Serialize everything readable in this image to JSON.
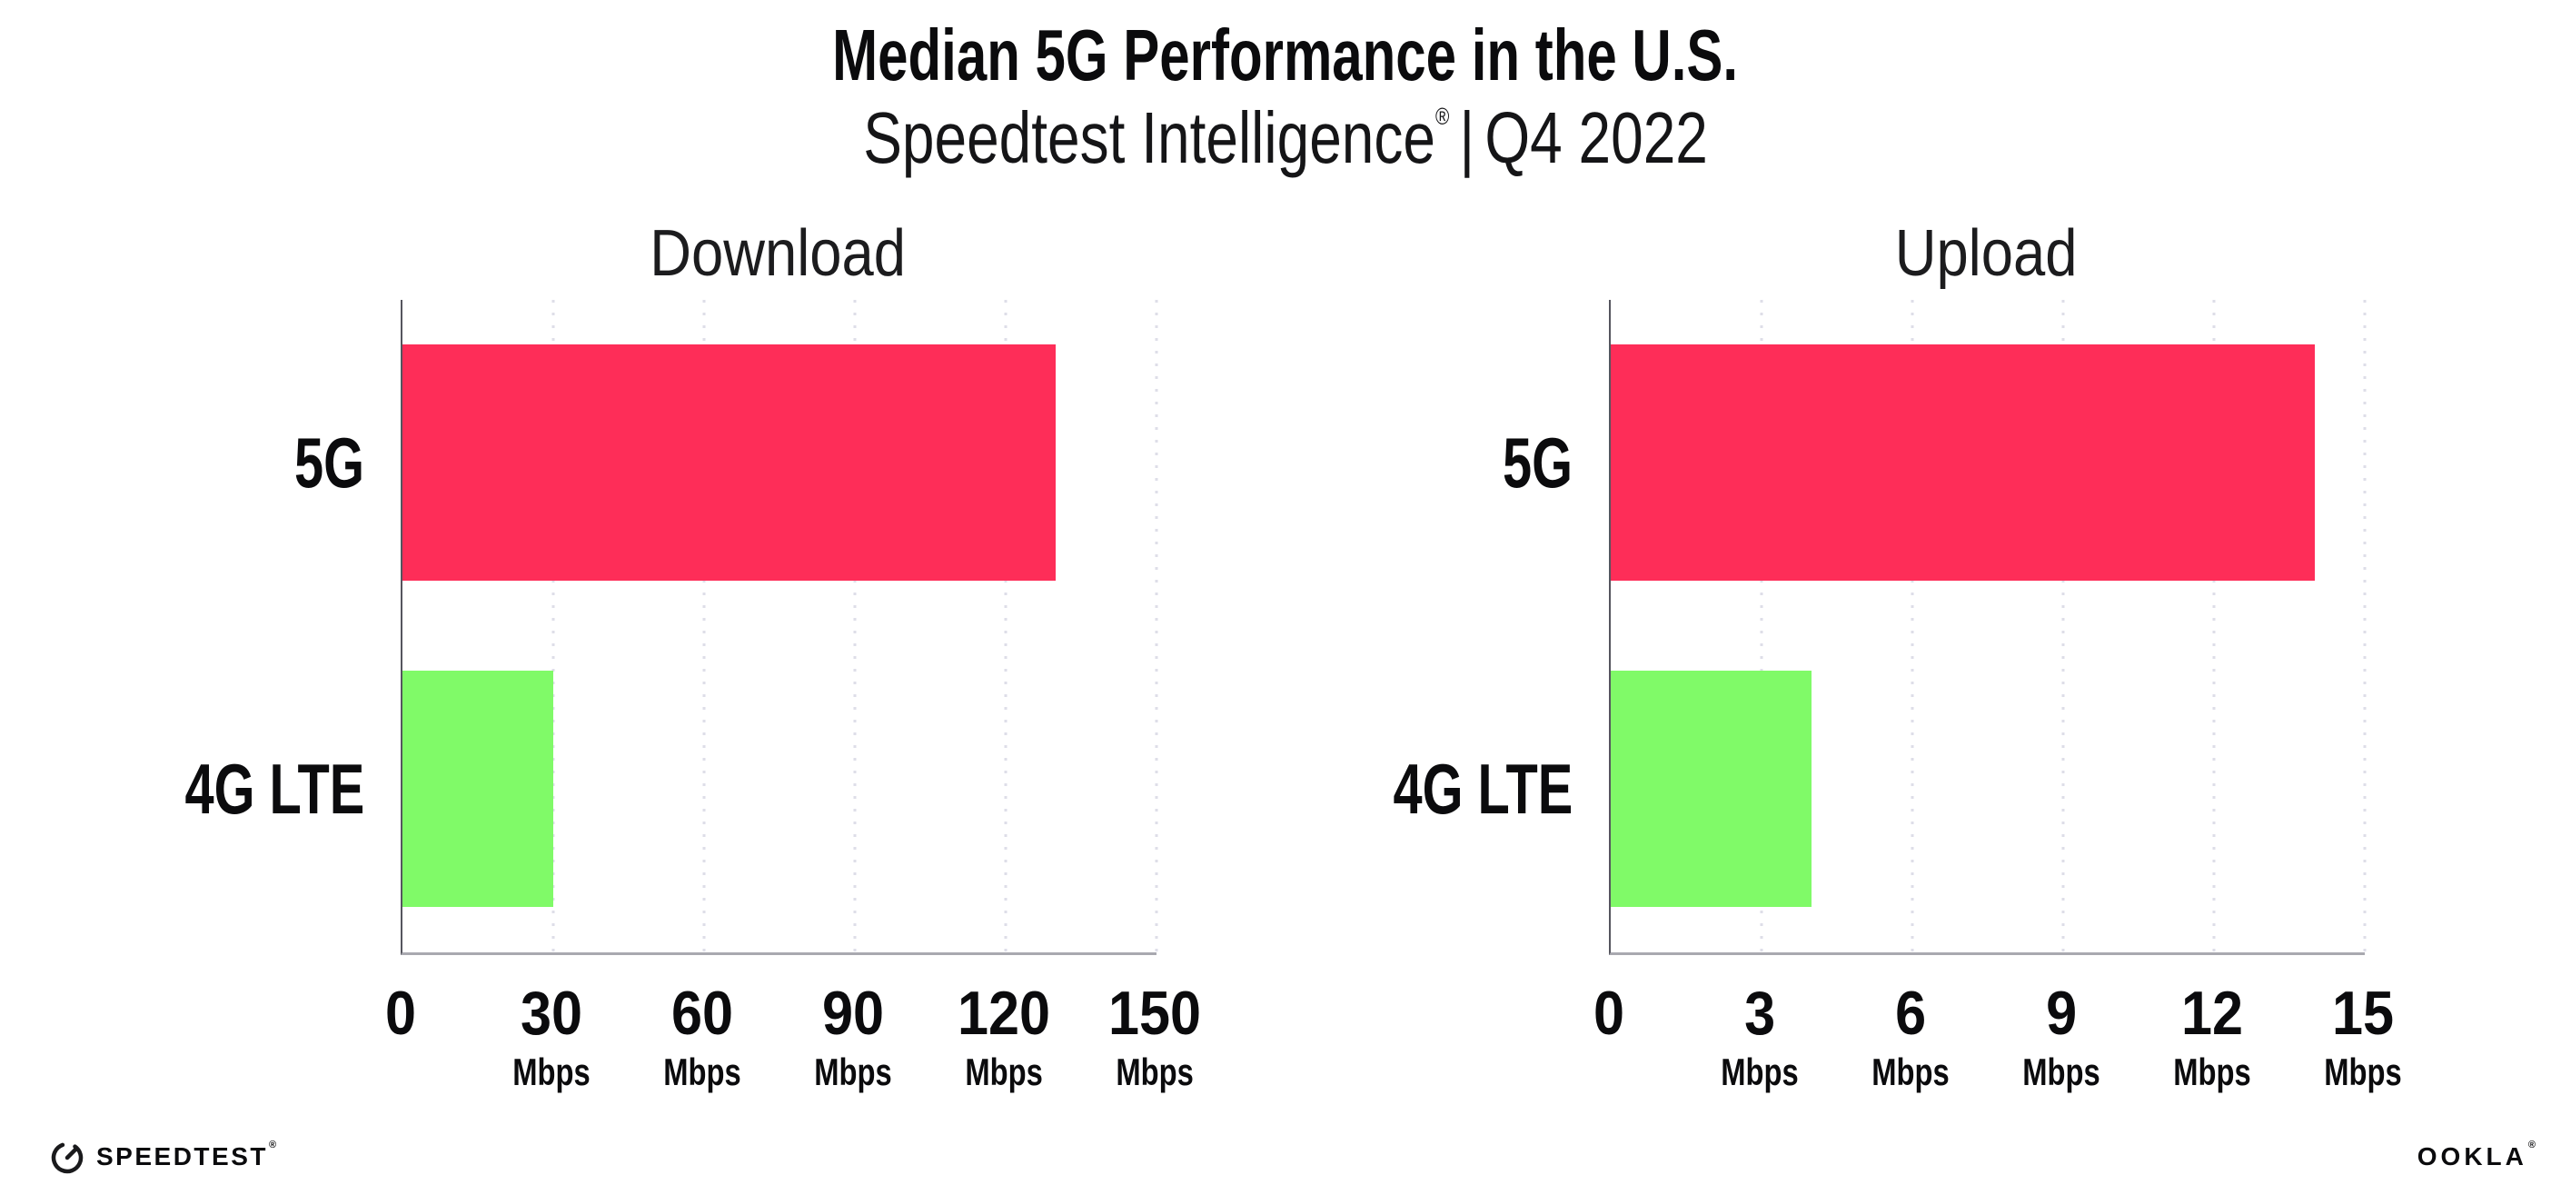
{
  "header": {
    "title": "Median 5G Performance in the U.S.",
    "subtitle_brand": "Speedtest Intelligence",
    "subtitle_regmark": "®",
    "subtitle_separator": "|",
    "subtitle_period": "Q4 2022"
  },
  "chart_data": [
    {
      "type": "bar",
      "orientation": "horizontal",
      "title": "Download",
      "categories": [
        "5G",
        "4G LTE"
      ],
      "values": [
        130,
        30
      ],
      "value_unit": "Mbps",
      "xlim": [
        0,
        150
      ],
      "xticks": [
        0,
        30,
        60,
        90,
        120,
        150
      ],
      "xtick_unit": "Mbps",
      "bar_colors": [
        "#fe2d58",
        "#80fa68"
      ],
      "grid": "dotted-vertical",
      "legend": "none"
    },
    {
      "type": "bar",
      "orientation": "horizontal",
      "title": "Upload",
      "categories": [
        "5G",
        "4G LTE"
      ],
      "values": [
        14,
        4
      ],
      "value_unit": "Mbps",
      "xlim": [
        0,
        15
      ],
      "xticks": [
        0,
        3,
        6,
        9,
        12,
        15
      ],
      "xtick_unit": "Mbps",
      "bar_colors": [
        "#fe2d58",
        "#80fa68"
      ],
      "grid": "dotted-vertical",
      "legend": "none"
    }
  ],
  "colors": {
    "bar_5g": "#fe2d58",
    "bar_4g_lte": "#80fa68",
    "grid": "#dedee8",
    "spine_left": "#55555e",
    "spine_bottom": "#a9a9b0",
    "ink": "#0b0b0d"
  },
  "footer": {
    "speedtest_label": "SPEEDTEST",
    "speedtest_mark": "®",
    "ookla_label": "OOKLA",
    "ookla_mark": "®"
  }
}
